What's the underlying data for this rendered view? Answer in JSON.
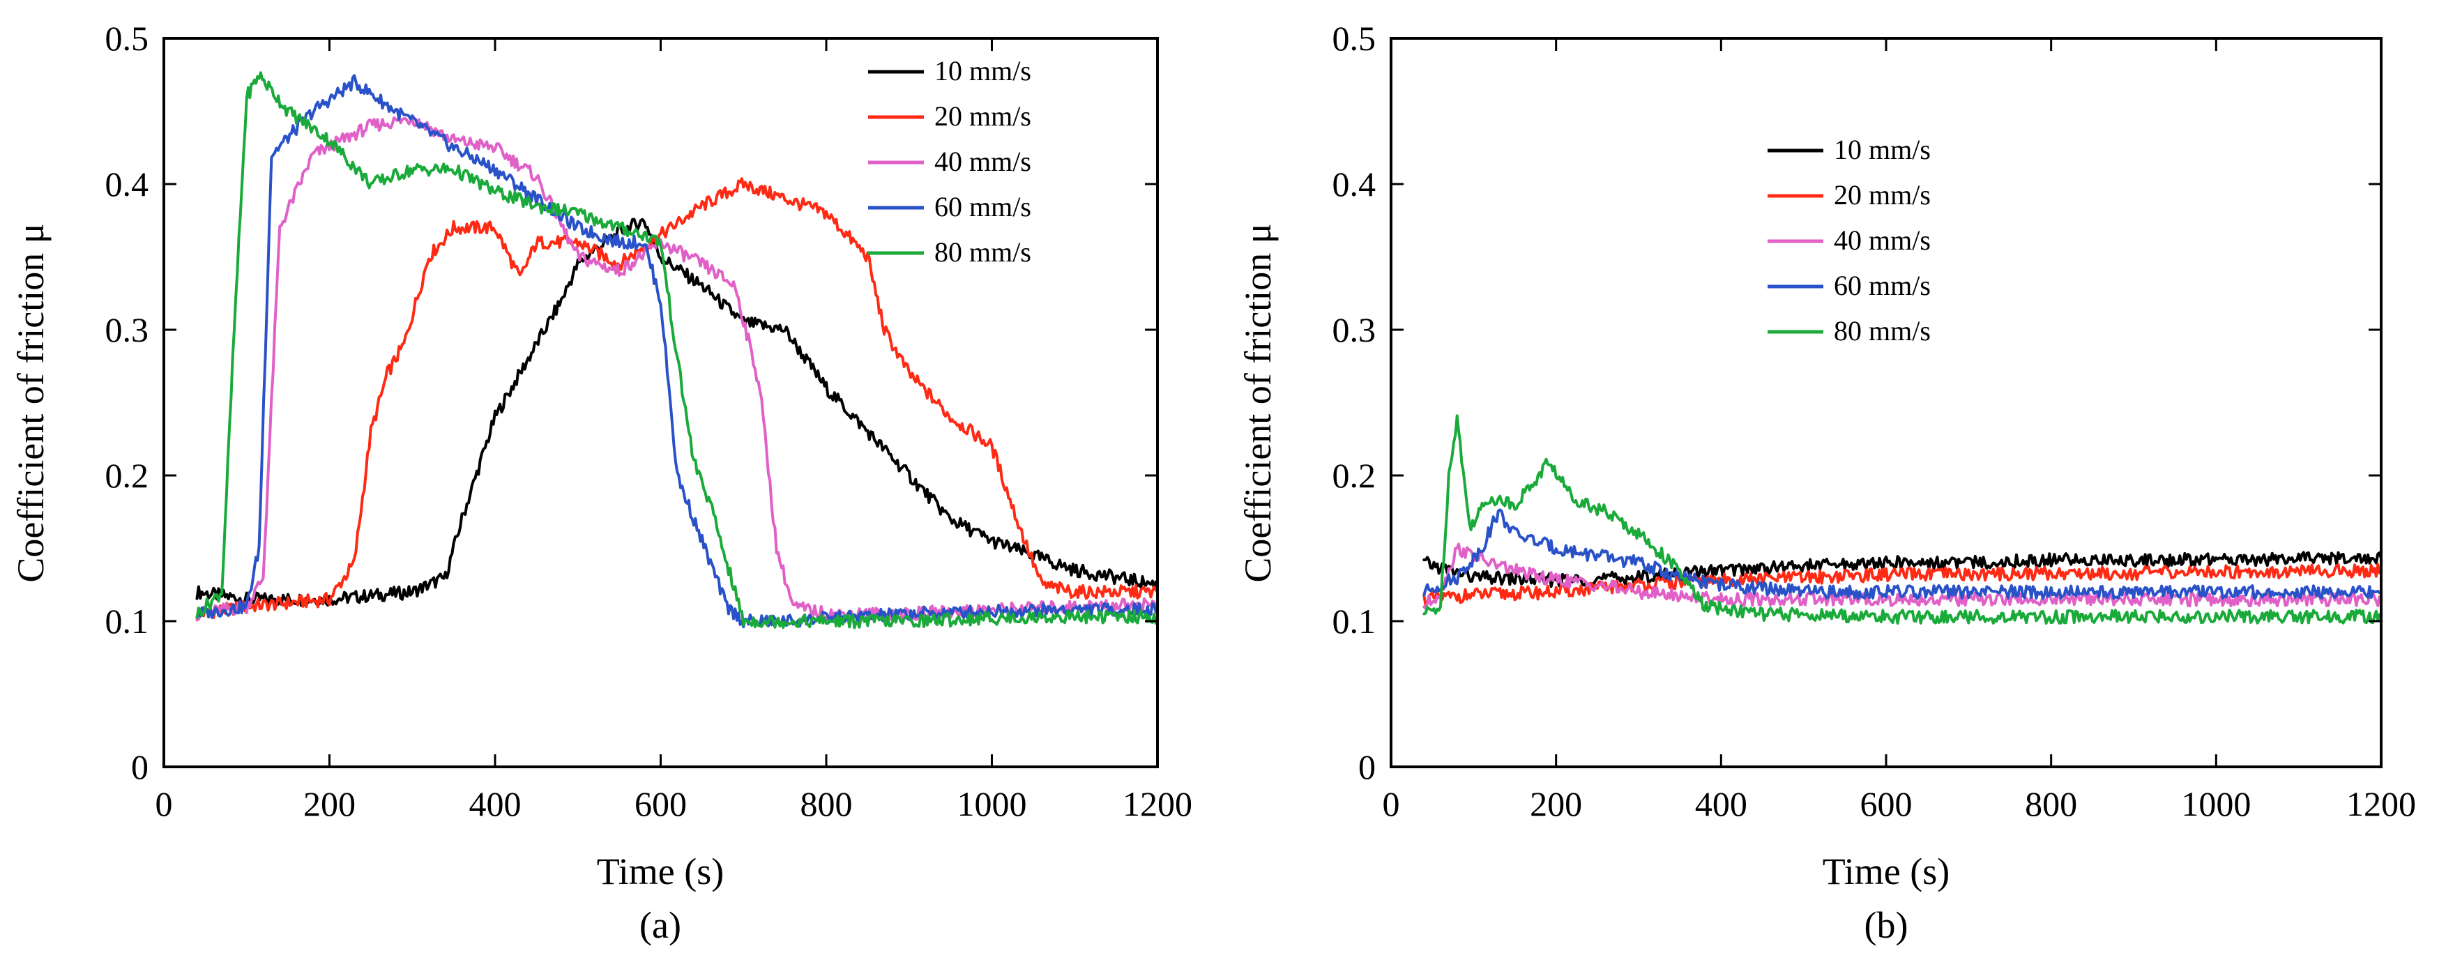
{
  "chart_data": [
    {
      "id": "a",
      "type": "line",
      "caption": "(a)",
      "title": "",
      "xlabel": "Time (s)",
      "ylabel": "Coefficient of friction μ",
      "xlim": [
        0,
        1200
      ],
      "ylim": [
        0,
        0.5
      ],
      "xticks": [
        "0",
        "200",
        "400",
        "600",
        "800",
        "1000",
        "1200"
      ],
      "yticks": [
        "0",
        "0.1",
        "0.2",
        "0.3",
        "0.4",
        "0.5"
      ],
      "legend_position": "top-right",
      "series": [
        {
          "name": "10 mm/s",
          "color": "#000000",
          "x": [
            40,
            100,
            200,
            300,
            340,
            360,
            400,
            450,
            480,
            500,
            520,
            560,
            580,
            600,
            650,
            700,
            750,
            800,
            850,
            900,
            950,
            1000,
            1050,
            1100,
            1150,
            1200
          ],
          "y": [
            0.12,
            0.115,
            0.115,
            0.12,
            0.13,
            0.17,
            0.24,
            0.29,
            0.32,
            0.345,
            0.355,
            0.37,
            0.375,
            0.35,
            0.33,
            0.305,
            0.3,
            0.26,
            0.23,
            0.2,
            0.17,
            0.155,
            0.145,
            0.135,
            0.13,
            0.125
          ]
        },
        {
          "name": "20 mm/s",
          "color": "#ff2a14",
          "x": [
            40,
            100,
            200,
            230,
            250,
            270,
            290,
            320,
            350,
            400,
            430,
            450,
            500,
            550,
            600,
            650,
            700,
            750,
            800,
            850,
            870,
            900,
            950,
            1000,
            1030,
            1060,
            1100,
            1200
          ],
          "y": [
            0.105,
            0.11,
            0.115,
            0.14,
            0.23,
            0.27,
            0.29,
            0.35,
            0.37,
            0.37,
            0.335,
            0.36,
            0.36,
            0.345,
            0.365,
            0.385,
            0.4,
            0.39,
            0.38,
            0.35,
            0.3,
            0.27,
            0.24,
            0.22,
            0.17,
            0.125,
            0.12,
            0.12
          ]
        },
        {
          "name": "40 mm/s",
          "color": "#e060c8",
          "x": [
            40,
            100,
            120,
            140,
            180,
            250,
            300,
            350,
            400,
            450,
            500,
            550,
            600,
            650,
            690,
            720,
            740,
            760,
            800,
            900,
            1000,
            1100,
            1200
          ],
          "y": [
            0.105,
            0.11,
            0.13,
            0.37,
            0.42,
            0.44,
            0.445,
            0.43,
            0.425,
            0.405,
            0.35,
            0.34,
            0.36,
            0.345,
            0.33,
            0.26,
            0.15,
            0.11,
            0.105,
            0.105,
            0.108,
            0.11,
            0.112
          ]
        },
        {
          "name": "60 mm/s",
          "color": "#2a52c8",
          "x": [
            40,
            100,
            115,
            130,
            180,
            230,
            280,
            350,
            400,
            450,
            500,
            550,
            580,
            600,
            620,
            640,
            660,
            680,
            700,
            750,
            800,
            900,
            1000,
            1100,
            1200
          ],
          "y": [
            0.105,
            0.11,
            0.15,
            0.42,
            0.45,
            0.47,
            0.45,
            0.425,
            0.41,
            0.39,
            0.37,
            0.36,
            0.36,
            0.32,
            0.2,
            0.17,
            0.14,
            0.11,
            0.1,
            0.1,
            0.102,
            0.105,
            0.107,
            0.108,
            0.108
          ]
        },
        {
          "name": "80 mm/s",
          "color": "#1aaa3a",
          "x": [
            40,
            70,
            85,
            100,
            115,
            150,
            200,
            250,
            300,
            350,
            400,
            450,
            500,
            550,
            580,
            600,
            620,
            640,
            660,
            680,
            700,
            800,
            900,
            1000,
            1100,
            1200
          ],
          "y": [
            0.105,
            0.12,
            0.3,
            0.46,
            0.475,
            0.45,
            0.43,
            0.4,
            0.41,
            0.41,
            0.395,
            0.385,
            0.38,
            0.37,
            0.365,
            0.36,
            0.28,
            0.21,
            0.18,
            0.14,
            0.1,
            0.1,
            0.1,
            0.102,
            0.103,
            0.103
          ]
        }
      ]
    },
    {
      "id": "b",
      "type": "line",
      "caption": "(b)",
      "title": "",
      "xlabel": "Time (s)",
      "ylabel": "Coefficient of friction μ",
      "xlim": [
        0,
        1200
      ],
      "ylim": [
        0,
        0.5
      ],
      "xticks": [
        "0",
        "200",
        "400",
        "600",
        "800",
        "1000",
        "1200"
      ],
      "yticks": [
        "0",
        "0.1",
        "0.2",
        "0.3",
        "0.4",
        "0.5"
      ],
      "legend_position": "upper-middle",
      "series": [
        {
          "name": "10 mm/s",
          "color": "#000000",
          "x": [
            40,
            100,
            200,
            300,
            400,
            500,
            600,
            700,
            800,
            900,
            1000,
            1100,
            1200
          ],
          "y": [
            0.14,
            0.13,
            0.128,
            0.13,
            0.135,
            0.138,
            0.14,
            0.14,
            0.142,
            0.142,
            0.142,
            0.143,
            0.143
          ]
        },
        {
          "name": "20 mm/s",
          "color": "#ff2a14",
          "x": [
            40,
            100,
            200,
            300,
            400,
            500,
            600,
            700,
            800,
            900,
            1000,
            1100,
            1200
          ],
          "y": [
            0.115,
            0.118,
            0.12,
            0.125,
            0.128,
            0.13,
            0.132,
            0.132,
            0.133,
            0.133,
            0.134,
            0.134,
            0.135
          ]
        },
        {
          "name": "40 mm/s",
          "color": "#e060c8",
          "x": [
            40,
            60,
            80,
            120,
            180,
            250,
            300,
            400,
            500,
            600,
            700,
            800,
            900,
            1000,
            1100,
            1200
          ],
          "y": [
            0.11,
            0.12,
            0.15,
            0.14,
            0.13,
            0.125,
            0.12,
            0.115,
            0.115,
            0.115,
            0.115,
            0.115,
            0.115,
            0.115,
            0.115,
            0.115
          ]
        },
        {
          "name": "60 mm/s",
          "color": "#2a52c8",
          "x": [
            40,
            80,
            110,
            130,
            150,
            200,
            250,
            300,
            350,
            400,
            500,
            600,
            700,
            800,
            900,
            1000,
            1100,
            1200
          ],
          "y": [
            0.12,
            0.13,
            0.15,
            0.175,
            0.16,
            0.15,
            0.145,
            0.14,
            0.13,
            0.125,
            0.12,
            0.12,
            0.12,
            0.12,
            0.12,
            0.12,
            0.12,
            0.12
          ]
        },
        {
          "name": "80 mm/s",
          "color": "#1aaa3a",
          "x": [
            40,
            60,
            70,
            80,
            95,
            120,
            150,
            180,
            190,
            220,
            260,
            300,
            340,
            380,
            450,
            600,
            800,
            1000,
            1200
          ],
          "y": [
            0.105,
            0.11,
            0.2,
            0.24,
            0.165,
            0.185,
            0.18,
            0.2,
            0.21,
            0.185,
            0.175,
            0.16,
            0.14,
            0.11,
            0.105,
            0.103,
            0.103,
            0.103,
            0.103
          ]
        }
      ]
    }
  ]
}
